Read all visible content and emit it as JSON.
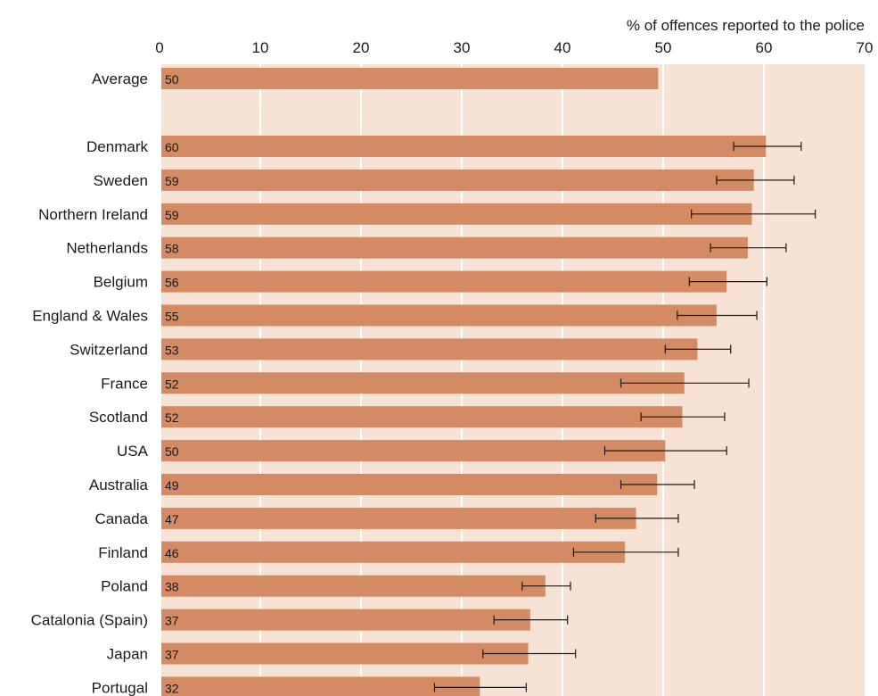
{
  "chart_data": {
    "type": "bar",
    "orientation": "horizontal",
    "title": "",
    "xlabel": "% of offences reported to the police",
    "ylabel": "",
    "xlim": [
      0,
      70
    ],
    "x_ticks": [
      0,
      10,
      20,
      30,
      40,
      50,
      60,
      70
    ],
    "x_axis_position": "top",
    "grid": true,
    "legend": "none",
    "error_bars": true,
    "summary_bar": {
      "category": "Average",
      "value": 49.5,
      "label": "50"
    },
    "categories": [
      "Denmark",
      "Sweden",
      "Northern Ireland",
      "Netherlands",
      "Belgium",
      "England & Wales",
      "Switzerland",
      "France",
      "Scotland",
      "USA",
      "Australia",
      "Canada",
      "Finland",
      "Poland",
      "Catalonia (Spain)",
      "Japan",
      "Portugal"
    ],
    "values": [
      60.2,
      59.0,
      58.8,
      58.4,
      56.3,
      55.3,
      53.4,
      52.1,
      51.9,
      50.2,
      49.4,
      47.3,
      46.2,
      38.3,
      36.8,
      36.6,
      31.8
    ],
    "data_labels": [
      "60",
      "59",
      "59",
      "58",
      "56",
      "55",
      "53",
      "52",
      "52",
      "50",
      "49",
      "47",
      "46",
      "38",
      "37",
      "37",
      "32"
    ],
    "error_low": [
      57.0,
      55.3,
      52.8,
      54.7,
      52.6,
      51.4,
      50.2,
      45.8,
      47.8,
      44.2,
      45.8,
      43.3,
      41.1,
      36.0,
      33.2,
      32.1,
      27.3
    ],
    "error_high": [
      63.7,
      63.0,
      65.1,
      62.2,
      60.3,
      59.3,
      56.7,
      58.5,
      56.1,
      56.3,
      53.1,
      51.5,
      51.5,
      40.8,
      40.5,
      41.3,
      36.4
    ]
  },
  "colors": {
    "bar": "#d48a62",
    "plot_background": "#f7e3d5",
    "gridline": "#ffffff",
    "text": "#1a1a1a",
    "error_bar": "#1a1a1a"
  }
}
